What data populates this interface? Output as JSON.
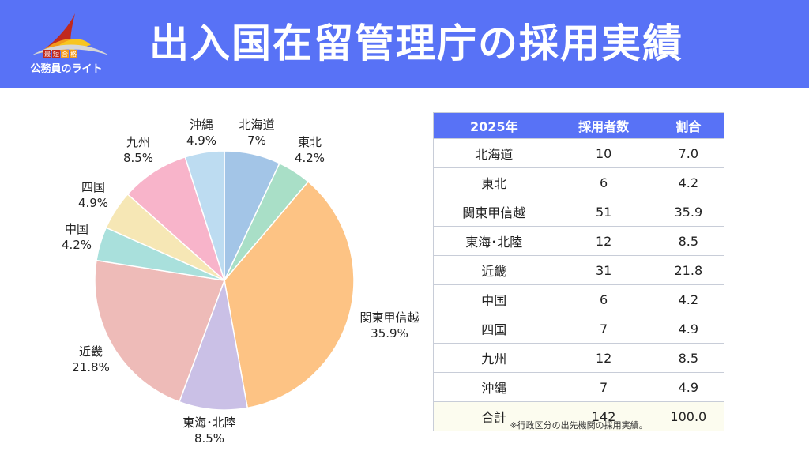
{
  "header": {
    "title": "出入国在留管理庁の採用実績",
    "logo_text": "公務員のライト",
    "logo_badges": [
      "最",
      "短",
      "合",
      "格"
    ]
  },
  "colors": {
    "header": "#5872f6"
  },
  "chart_data": {
    "type": "pie",
    "title": "出入国在留管理庁の採用実績",
    "start": "top",
    "direction": "clockwise",
    "slices": [
      {
        "label": "北海道",
        "value": 7.0,
        "display": "7%",
        "color": "#a3c5e7"
      },
      {
        "label": "東北",
        "value": 4.2,
        "display": "4.2%",
        "color": "#a9dfc7"
      },
      {
        "label": "関東甲信越",
        "value": 35.9,
        "display": "35.9%",
        "color": "#fdc384"
      },
      {
        "label": "東海･北陸",
        "value": 8.5,
        "display": "8.5%",
        "color": "#cac0e6"
      },
      {
        "label": "近畿",
        "value": 21.8,
        "display": "21.8%",
        "color": "#eebbb8"
      },
      {
        "label": "中国",
        "value": 4.2,
        "display": "4.2%",
        "color": "#a9e0dc"
      },
      {
        "label": "四国",
        "value": 4.9,
        "display": "4.9%",
        "color": "#f6e7b5"
      },
      {
        "label": "九州",
        "value": 8.5,
        "display": "8.5%",
        "color": "#f8b4ca"
      },
      {
        "label": "沖縄",
        "value": 4.9,
        "display": "4.9%",
        "color": "#bddcf1"
      }
    ]
  },
  "table": {
    "headers": [
      "2025年",
      "採用者数",
      "割合"
    ],
    "rows": [
      [
        "北海道",
        "10",
        "7.0"
      ],
      [
        "東北",
        "6",
        "4.2"
      ],
      [
        "関東甲信越",
        "51",
        "35.9"
      ],
      [
        "東海･北陸",
        "12",
        "8.5"
      ],
      [
        "近畿",
        "31",
        "21.8"
      ],
      [
        "中国",
        "6",
        "4.2"
      ],
      [
        "四国",
        "7",
        "4.9"
      ],
      [
        "九州",
        "12",
        "8.5"
      ],
      [
        "沖縄",
        "7",
        "4.9"
      ]
    ],
    "total": [
      "合計",
      "142",
      "100.0"
    ]
  },
  "note": "※行政区分の出先機関の採用実績。"
}
